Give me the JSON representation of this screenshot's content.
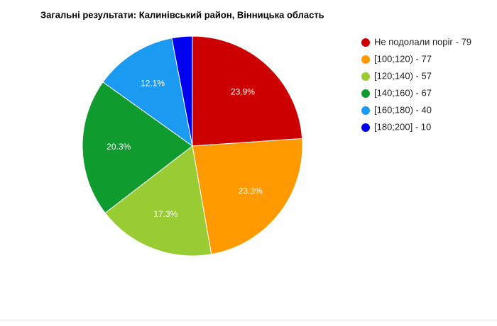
{
  "chart_data": {
    "type": "pie",
    "title": "Загальні результати: Калинівський район, Вінницька область",
    "categories": [
      "Не подолали поріг - 79",
      "[100;120) - 77",
      "[120;140) - 57",
      "[140;160) - 67",
      "[160;180) - 40",
      "[180;200] - 10"
    ],
    "values": [
      23.9,
      23.3,
      17.3,
      20.3,
      12.1,
      3.0
    ],
    "value_labels": [
      "23.9%",
      "23.3%",
      "17.3%",
      "20.3%",
      "12.1%",
      null
    ],
    "colors": [
      "#cc0000",
      "#ff9900",
      "#99cc33",
      "#109b2f",
      "#1a9af0",
      "#0000ee"
    ],
    "legend": "right"
  }
}
